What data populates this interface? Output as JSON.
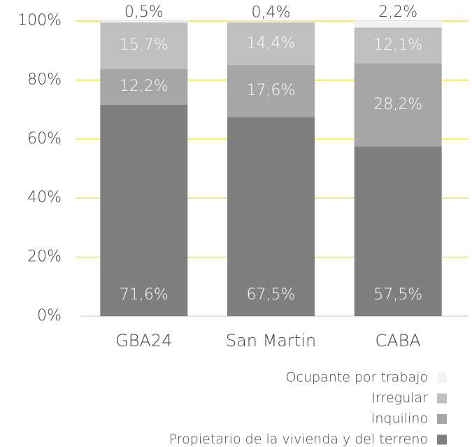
{
  "chart_data": {
    "type": "stacked_bar",
    "categories": [
      "GBA24",
      "San Martin",
      "CABA"
    ],
    "series": [
      {
        "name": "Propietario de la vivienda y del terreno",
        "color": "#7f7f7f",
        "values": [
          71.6,
          67.5,
          57.5
        ],
        "value_labels": [
          "71,6%",
          "67,5%",
          "57,5%"
        ]
      },
      {
        "name": "Inquilino",
        "color": "#a6a6a6",
        "values": [
          12.2,
          17.6,
          28.2
        ],
        "value_labels": [
          "12,2%",
          "17,6%",
          "28,2%"
        ]
      },
      {
        "name": "Irregular",
        "color": "#bfbfbf",
        "values": [
          15.7,
          14.4,
          12.1
        ],
        "value_labels": [
          "15,7%",
          "14,4%",
          "12,1%"
        ]
      },
      {
        "name": "Ocupante por trabajo",
        "color": "#f2f2f2",
        "values": [
          0.5,
          0.4,
          2.2
        ],
        "value_labels": [
          "0,5%",
          "0,4%",
          "2,2%"
        ]
      }
    ],
    "ylim": [
      0,
      100
    ],
    "yticks": [
      {
        "value": 0,
        "label": "0%"
      },
      {
        "value": 20,
        "label": "20%"
      },
      {
        "value": 40,
        "label": "40%"
      },
      {
        "value": 60,
        "label": "60%"
      },
      {
        "value": 80,
        "label": "80%"
      },
      {
        "value": 100,
        "label": "100%"
      }
    ],
    "grid": true,
    "grid_color": "#f0e442",
    "legend": "bottom-right"
  }
}
